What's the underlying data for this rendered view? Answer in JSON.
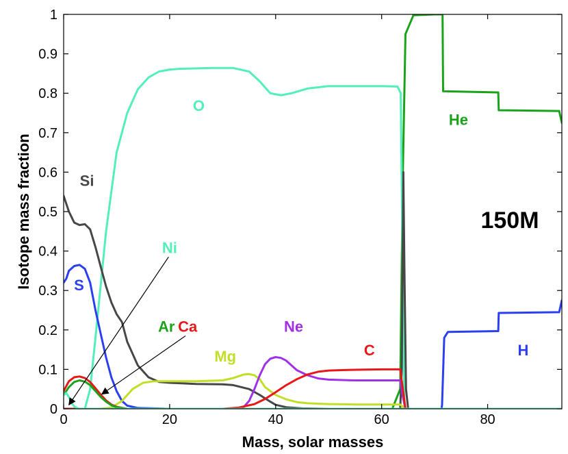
{
  "chart_data": {
    "type": "line",
    "title": "",
    "xlabel": "Mass, solar masses",
    "ylabel": "Isotope mass fraction",
    "xlim": [
      0,
      94
    ],
    "ylim": [
      0,
      1
    ],
    "x_ticks": [
      0,
      20,
      40,
      60,
      80
    ],
    "x_tick_labels": [
      "0",
      "20",
      "40",
      "60",
      "80"
    ],
    "y_ticks": [
      0,
      0.1,
      0.2,
      0.3,
      0.4,
      0.5,
      0.6,
      0.7,
      0.8,
      0.9,
      1
    ],
    "y_tick_labels": [
      "0",
      "0.1",
      "0.2",
      "0.3",
      "0.4",
      "0.5",
      "0.6",
      "0.7",
      "0.8",
      "0.9",
      "1"
    ],
    "grid": false,
    "annotation": "150M",
    "series": [
      {
        "name": "He",
        "color": "#1aa31a",
        "x": [
          0,
          62,
          63.5,
          64,
          64.5,
          66,
          70,
          71.5,
          71.6,
          82,
          82.1,
          93.5,
          94
        ],
        "y": [
          0,
          0,
          0.05,
          0.6,
          0.95,
          0.998,
          1.0,
          1.0,
          0.805,
          0.802,
          0.757,
          0.755,
          0.725
        ]
      },
      {
        "name": "H",
        "color": "#2a3ff0",
        "x": [
          0,
          71.3,
          71.4,
          71.8,
          72.5,
          82,
          82.1,
          93.5,
          94
        ],
        "y": [
          0,
          0,
          0.01,
          0.18,
          0.195,
          0.197,
          0.243,
          0.245,
          0.275
        ]
      },
      {
        "name": "O",
        "color": "#52f0b8",
        "x": [
          0,
          4,
          5,
          6,
          8,
          10,
          12,
          14,
          16,
          18,
          20,
          22,
          25,
          28,
          32,
          35,
          37,
          39,
          41,
          43,
          46,
          50,
          55,
          60,
          63,
          63.6,
          64,
          64.3,
          94
        ],
        "y": [
          0,
          0,
          0.05,
          0.18,
          0.45,
          0.65,
          0.75,
          0.81,
          0.84,
          0.855,
          0.86,
          0.862,
          0.863,
          0.864,
          0.864,
          0.855,
          0.83,
          0.8,
          0.795,
          0.8,
          0.812,
          0.818,
          0.818,
          0.818,
          0.817,
          0.8,
          0.3,
          0,
          0
        ]
      },
      {
        "name": "Si",
        "color": "#474747",
        "x": [
          0,
          1,
          2,
          3,
          4,
          5,
          6,
          7,
          8,
          9,
          10,
          11,
          12,
          14,
          16,
          18,
          20,
          25,
          30,
          32,
          35,
          37,
          39,
          40,
          42,
          45,
          50,
          60,
          63.5,
          63.8,
          64.1,
          64.3,
          64.6,
          65,
          94
        ],
        "y": [
          0.54,
          0.5,
          0.472,
          0.466,
          0.468,
          0.455,
          0.41,
          0.36,
          0.31,
          0.27,
          0.24,
          0.22,
          0.17,
          0.11,
          0.08,
          0.068,
          0.066,
          0.063,
          0.062,
          0.06,
          0.05,
          0.035,
          0.018,
          0.01,
          0.004,
          0.001,
          0,
          0,
          0,
          0.1,
          0.6,
          0.35,
          0.05,
          0,
          0
        ]
      },
      {
        "name": "S",
        "color": "#2a3ff0",
        "x": [
          0,
          0.5,
          1,
          2,
          3,
          4,
          5,
          6,
          7,
          8,
          9,
          10,
          11,
          12,
          14,
          20,
          94
        ],
        "y": [
          0.32,
          0.33,
          0.35,
          0.362,
          0.365,
          0.355,
          0.32,
          0.25,
          0.19,
          0.13,
          0.08,
          0.045,
          0.02,
          0.008,
          0.002,
          0,
          0
        ]
      },
      {
        "name": "Mg",
        "color": "#c2de26",
        "x": [
          0,
          7,
          9,
          11,
          13,
          15,
          17,
          20,
          25,
          30,
          32,
          34,
          35,
          36,
          37,
          38,
          40,
          42,
          44,
          46,
          50,
          55,
          60,
          63.5,
          64,
          64.5,
          94
        ],
        "y": [
          0,
          0,
          0.003,
          0.02,
          0.05,
          0.066,
          0.07,
          0.07,
          0.07,
          0.072,
          0.078,
          0.087,
          0.088,
          0.085,
          0.075,
          0.055,
          0.035,
          0.024,
          0.017,
          0.014,
          0.012,
          0.011,
          0.011,
          0.011,
          0.005,
          0,
          0
        ]
      },
      {
        "name": "Ne",
        "color": "#a030e8",
        "x": [
          0,
          33,
          34,
          35,
          36,
          37,
          38,
          39,
          40,
          41,
          42,
          43,
          44,
          46,
          48,
          50,
          55,
          60,
          63.5,
          64,
          64.5,
          94
        ],
        "y": [
          0,
          0,
          0.005,
          0.02,
          0.05,
          0.085,
          0.113,
          0.127,
          0.131,
          0.129,
          0.122,
          0.11,
          0.098,
          0.085,
          0.077,
          0.074,
          0.072,
          0.072,
          0.072,
          0.03,
          0,
          0
        ]
      },
      {
        "name": "C",
        "color": "#e81818",
        "x": [
          0,
          30,
          33,
          36,
          38,
          40,
          42,
          44,
          46,
          48,
          50,
          52,
          55,
          60,
          63.5,
          64,
          64.5,
          94
        ],
        "y": [
          0,
          0,
          0.003,
          0.012,
          0.025,
          0.042,
          0.06,
          0.075,
          0.087,
          0.094,
          0.097,
          0.098,
          0.099,
          0.1,
          0.1,
          0.05,
          0,
          0
        ]
      },
      {
        "name": "Ca",
        "color": "#e81818",
        "x": [
          0,
          1,
          2,
          3,
          4,
          5,
          6,
          7,
          8,
          9,
          10,
          12,
          94
        ],
        "y": [
          0.045,
          0.07,
          0.08,
          0.082,
          0.078,
          0.068,
          0.052,
          0.036,
          0.021,
          0.011,
          0.005,
          0,
          0
        ]
      },
      {
        "name": "Ar",
        "color": "#1aa31a",
        "x": [
          0,
          1,
          2,
          3,
          4,
          5,
          6,
          7,
          8,
          9,
          10,
          12,
          94
        ],
        "y": [
          0.035,
          0.055,
          0.068,
          0.072,
          0.069,
          0.06,
          0.045,
          0.03,
          0.018,
          0.009,
          0.004,
          0,
          0
        ]
      },
      {
        "name": "Ni",
        "color": "#52f0b8",
        "x": [
          0,
          0.5,
          1,
          1.5,
          2,
          2.5,
          3,
          4,
          94
        ],
        "y": [
          0.035,
          0.04,
          0.03,
          0.015,
          0.006,
          0.002,
          0,
          0,
          0
        ]
      }
    ],
    "labels": [
      {
        "name": "O",
        "text": "O",
        "color": "#52f0b8",
        "x": 25.5,
        "y": 0.755
      },
      {
        "name": "He",
        "text": "He",
        "color": "#1aa31a",
        "x": 74.5,
        "y": 0.72
      },
      {
        "name": "Si",
        "text": "Si",
        "color": "#474747",
        "x": 4.4,
        "y": 0.565
      },
      {
        "name": "S",
        "text": "S",
        "color": "#2a3ff0",
        "x": 2.9,
        "y": 0.3
      },
      {
        "name": "Ni",
        "text": "Ni",
        "color": "#52f0b8",
        "x": 20.0,
        "y": 0.395
      },
      {
        "name": "Ar",
        "text": "Ar",
        "color": "#1aa31a",
        "x": 19.4,
        "y": 0.195
      },
      {
        "name": "Ca",
        "text": "Ca",
        "color": "#e81818",
        "x": 23.4,
        "y": 0.195
      },
      {
        "name": "Mg",
        "text": "Mg",
        "color": "#c2de26",
        "x": 30.5,
        "y": 0.12
      },
      {
        "name": "Ne",
        "text": "Ne",
        "color": "#a030e8",
        "x": 43.4,
        "y": 0.195
      },
      {
        "name": "C",
        "text": "C",
        "color": "#e81818",
        "x": 57.7,
        "y": 0.135
      },
      {
        "name": "H",
        "text": "H",
        "color": "#2a3ff0",
        "x": 86.7,
        "y": 0.135
      }
    ],
    "arrows": [
      {
        "name": "ni-arrow",
        "from": [
          19.8,
          0.385
        ],
        "to": [
          1.0,
          0.01
        ]
      },
      {
        "name": "arca-arrow",
        "from": [
          23.0,
          0.185
        ],
        "to": [
          7.2,
          0.037
        ]
      }
    ]
  }
}
